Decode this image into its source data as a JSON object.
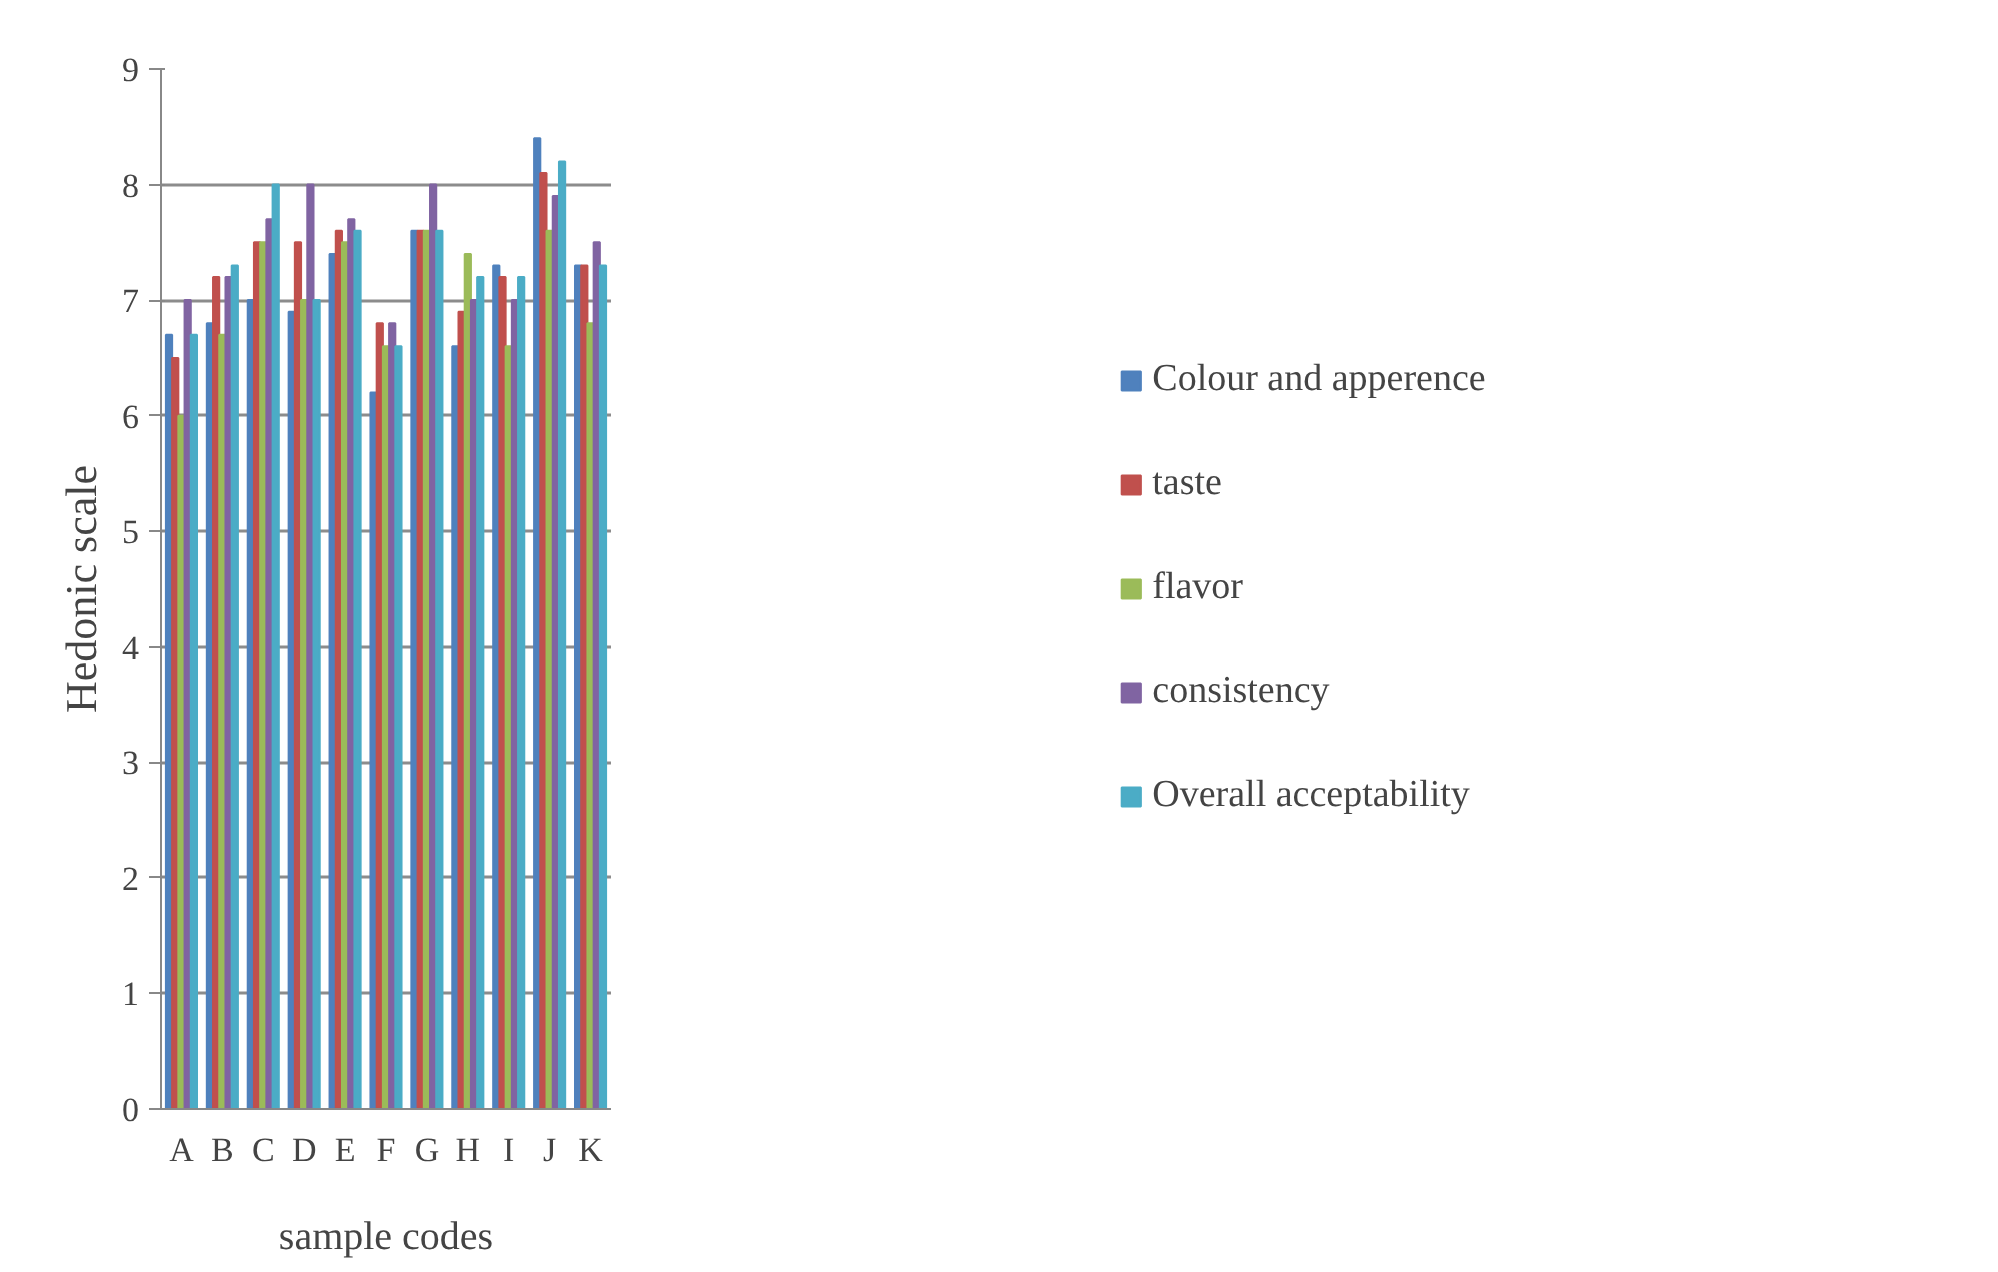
{
  "chart_data": {
    "type": "bar",
    "xlabel": "sample codes",
    "ylabel": "Hedonic scale",
    "categories": [
      "A",
      "B",
      "C",
      "D",
      "E",
      "F",
      "G",
      "H",
      "I",
      "J",
      "K"
    ],
    "series": [
      {
        "name": "Colour and apperence",
        "color": "#4f81bd",
        "values": [
          6.7,
          6.8,
          7.0,
          6.9,
          7.4,
          6.2,
          7.6,
          6.6,
          7.3,
          8.4,
          7.3
        ]
      },
      {
        "name": "taste",
        "color": "#c0504d",
        "values": [
          6.5,
          7.2,
          7.5,
          7.5,
          7.6,
          6.8,
          7.6,
          6.9,
          7.2,
          8.1,
          7.3
        ]
      },
      {
        "name": "flavor",
        "color": "#9bbb59",
        "values": [
          6.0,
          6.7,
          7.5,
          7.0,
          7.5,
          6.6,
          7.6,
          7.4,
          6.6,
          7.6,
          6.8
        ]
      },
      {
        "name": "consistency",
        "color": "#8064a2",
        "values": [
          7.0,
          7.2,
          7.7,
          8.0,
          7.7,
          6.8,
          8.0,
          7.0,
          7.0,
          7.9,
          7.5
        ]
      },
      {
        "name": "Overall acceptability",
        "color": "#4bacc6",
        "values": [
          6.7,
          7.3,
          8.0,
          7.0,
          7.6,
          6.6,
          7.6,
          7.2,
          7.2,
          8.2,
          7.3
        ]
      }
    ],
    "ylim": [
      0,
      9
    ],
    "yticks": [
      0,
      1,
      2,
      3,
      4,
      5,
      6,
      7,
      8,
      9
    ],
    "grid": "y",
    "legend": "right"
  }
}
